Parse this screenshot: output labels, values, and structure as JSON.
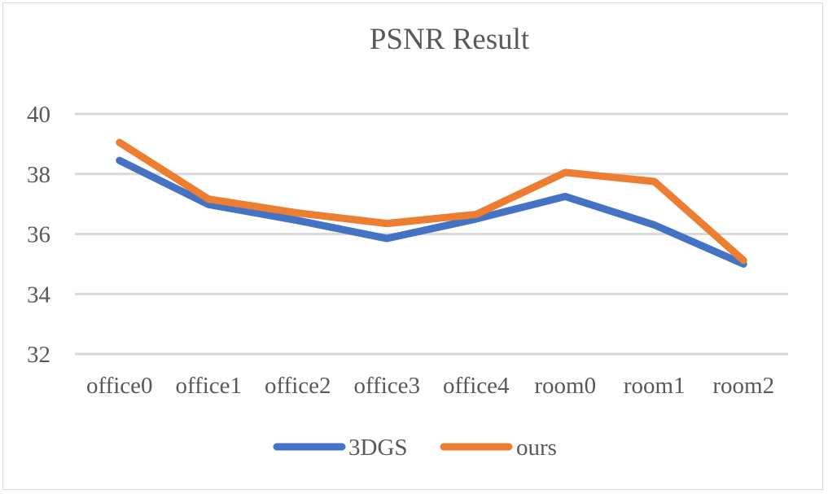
{
  "chart_data": {
    "type": "line",
    "title": "PSNR Result",
    "xlabel": "",
    "ylabel": "",
    "categories": [
      "office0",
      "office1",
      "office2",
      "office3",
      "office4",
      "room0",
      "room1",
      "room2"
    ],
    "series": [
      {
        "name": "3DGS",
        "color": "#4472C4",
        "values": [
          38.45,
          36.98,
          36.45,
          35.85,
          36.5,
          37.25,
          36.3,
          35.0
        ]
      },
      {
        "name": "ours",
        "color": "#ED7D31",
        "values": [
          39.05,
          37.16,
          36.7,
          36.35,
          36.65,
          38.05,
          37.75,
          35.12
        ]
      }
    ],
    "ylim": [
      32,
      40
    ],
    "yticks": [
      32,
      34,
      36,
      38,
      40
    ],
    "grid": true,
    "legend_position": "bottom"
  },
  "colors": {
    "grid": "#D9D9D9",
    "text": "#595959",
    "border": "#D9D9D9"
  }
}
